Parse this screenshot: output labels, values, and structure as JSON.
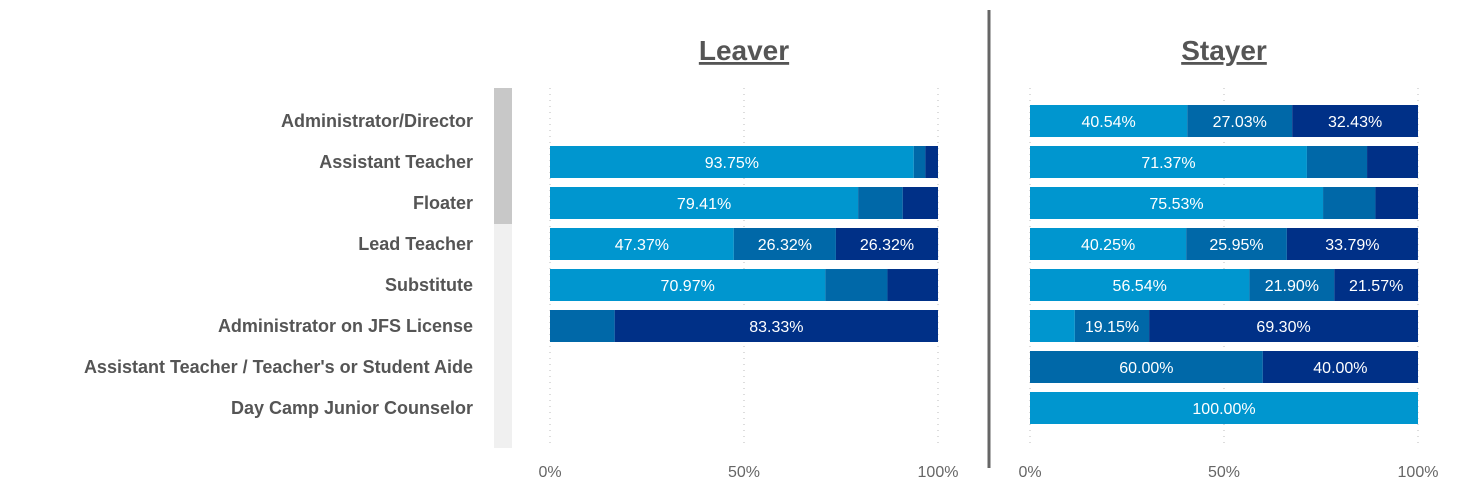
{
  "chart_data": {
    "type": "bar",
    "orientation": "horizontal",
    "stacked": true,
    "percent_stacked": true,
    "categories": [
      "Administrator/Director",
      "Assistant Teacher",
      "Floater",
      "Lead Teacher",
      "Substitute",
      "Administrator on JFS License",
      "Assistant Teacher / Teacher's or Student Aide",
      "Day Camp Junior Counselor"
    ],
    "xticks": [
      "0%",
      "50%",
      "100%"
    ],
    "xlim": [
      0,
      100
    ],
    "grid": "vertical dotted",
    "colors": [
      "#0096cf",
      "#0068a8",
      "#003087"
    ],
    "panels": [
      {
        "title": "Leaver",
        "series": [
          {
            "values": [
              null,
              93.75,
              79.41,
              47.37,
              70.97,
              0,
              null,
              null
            ]
          },
          {
            "values": [
              null,
              3.0,
              11.5,
              26.32,
              16.0,
              16.67,
              null,
              null
            ]
          },
          {
            "values": [
              null,
              3.25,
              9.09,
              26.32,
              13.03,
              83.33,
              null,
              null
            ]
          }
        ],
        "labels": [
          [
            null,
            null,
            null
          ],
          [
            "93.75%",
            null,
            null
          ],
          [
            "79.41%",
            null,
            null
          ],
          [
            "47.37%",
            "26.32%",
            "26.32%"
          ],
          [
            "70.97%",
            null,
            null
          ],
          [
            null,
            null,
            "83.33%"
          ],
          [
            null,
            null,
            null
          ],
          [
            null,
            null,
            null
          ]
        ]
      },
      {
        "title": "Stayer",
        "series": [
          {
            "values": [
              40.54,
              71.37,
              75.53,
              40.25,
              56.54,
              11.55,
              0,
              100.0
            ]
          },
          {
            "values": [
              27.03,
              15.5,
              13.5,
              25.95,
              21.9,
              19.15,
              60.0,
              0
            ]
          },
          {
            "values": [
              32.43,
              13.13,
              10.97,
              33.79,
              21.57,
              69.3,
              40.0,
              0
            ]
          }
        ],
        "labels": [
          [
            "40.54%",
            "27.03%",
            "32.43%"
          ],
          [
            "71.37%",
            null,
            null
          ],
          [
            "75.53%",
            null,
            null
          ],
          [
            "40.25%",
            "25.95%",
            "33.79%"
          ],
          [
            "56.54%",
            "21.90%",
            "21.57%"
          ],
          [
            null,
            "19.15%",
            "69.30%"
          ],
          [
            null,
            "60.00%",
            "40.00%"
          ],
          [
            "100.00%",
            null,
            null
          ]
        ]
      }
    ],
    "row_group_shading": {
      "dark_rows": 3,
      "light_rows": 5,
      "dark_color": "#c8c8c8",
      "light_color": "#f0f0f0"
    }
  }
}
